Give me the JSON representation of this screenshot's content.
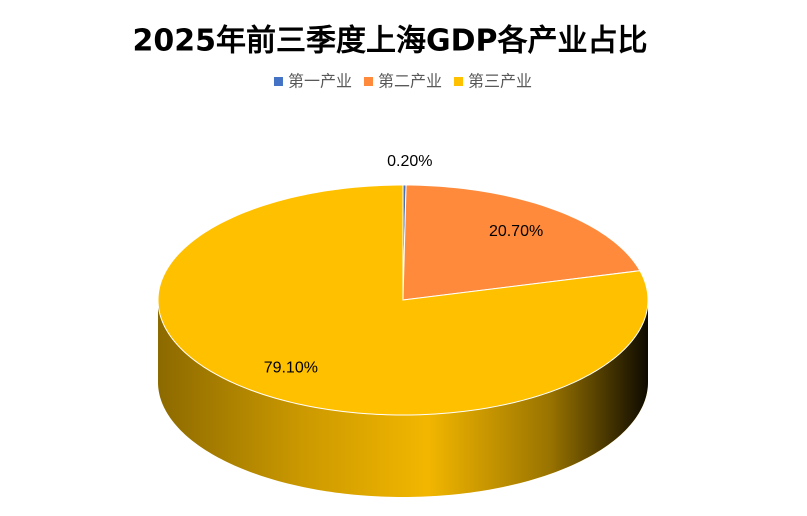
{
  "chart_data": {
    "type": "pie3d",
    "title": "2025年前三季度上海GDP各产业占比",
    "categories": [
      "第一产业",
      "第二产业",
      "第三产业"
    ],
    "values": [
      0.2,
      20.7,
      79.1
    ],
    "value_labels": [
      "0.20%",
      "20.70%",
      "79.10%"
    ],
    "colors": [
      "#4472c4",
      "#ff8a3c",
      "#ffc000"
    ],
    "legend": "top"
  }
}
